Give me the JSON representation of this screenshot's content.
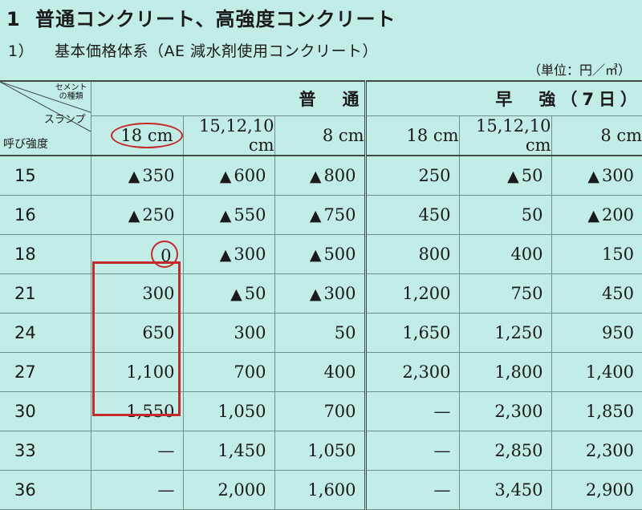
{
  "heading": {
    "num": "1",
    "text": "普通コンクリート、高強度コンクリート"
  },
  "subheading": {
    "num": "1）",
    "text": "基本価格体系（AE 減水剤使用コンクリート）"
  },
  "unit_label": "（単位：円／㎥）",
  "corner": {
    "cement_label": "セメント\nの種類",
    "slump_label": "スランプ",
    "strength_label": "呼び強度"
  },
  "groups": [
    "普　通",
    "早　強（7日）"
  ],
  "slumps": [
    "18 cm",
    "15,12,10 cm",
    "8 cm",
    "18 cm",
    "15,12,10 cm",
    "8 cm"
  ],
  "triangle_symbol": "▲",
  "rows": [
    {
      "strength": "15",
      "cells": [
        {
          "neg": true,
          "v": "350"
        },
        {
          "neg": true,
          "v": "600"
        },
        {
          "neg": true,
          "v": "800"
        },
        {
          "neg": false,
          "v": "250"
        },
        {
          "neg": true,
          "v": "50"
        },
        {
          "neg": true,
          "v": "300"
        }
      ]
    },
    {
      "strength": "16",
      "cells": [
        {
          "neg": true,
          "v": "250"
        },
        {
          "neg": true,
          "v": "550"
        },
        {
          "neg": true,
          "v": "750"
        },
        {
          "neg": false,
          "v": "450"
        },
        {
          "neg": false,
          "v": "50"
        },
        {
          "neg": true,
          "v": "200"
        }
      ]
    },
    {
      "strength": "18",
      "cells": [
        {
          "neg": false,
          "v": "0"
        },
        {
          "neg": true,
          "v": "300"
        },
        {
          "neg": true,
          "v": "500"
        },
        {
          "neg": false,
          "v": "800"
        },
        {
          "neg": false,
          "v": "400"
        },
        {
          "neg": false,
          "v": "150"
        }
      ]
    },
    {
      "strength": "21",
      "cells": [
        {
          "neg": false,
          "v": "300"
        },
        {
          "neg": true,
          "v": "50"
        },
        {
          "neg": true,
          "v": "300"
        },
        {
          "neg": false,
          "v": "1,200"
        },
        {
          "neg": false,
          "v": "750"
        },
        {
          "neg": false,
          "v": "450"
        }
      ]
    },
    {
      "strength": "24",
      "cells": [
        {
          "neg": false,
          "v": "650"
        },
        {
          "neg": false,
          "v": "300"
        },
        {
          "neg": false,
          "v": "50"
        },
        {
          "neg": false,
          "v": "1,650"
        },
        {
          "neg": false,
          "v": "1,250"
        },
        {
          "neg": false,
          "v": "950"
        }
      ]
    },
    {
      "strength": "27",
      "cells": [
        {
          "neg": false,
          "v": "1,100"
        },
        {
          "neg": false,
          "v": "700"
        },
        {
          "neg": false,
          "v": "400"
        },
        {
          "neg": false,
          "v": "2,300"
        },
        {
          "neg": false,
          "v": "1,800"
        },
        {
          "neg": false,
          "v": "1,400"
        }
      ]
    },
    {
      "strength": "30",
      "cells": [
        {
          "neg": false,
          "v": "1,550"
        },
        {
          "neg": false,
          "v": "1,050"
        },
        {
          "neg": false,
          "v": "700"
        },
        {
          "neg": false,
          "v": "—"
        },
        {
          "neg": false,
          "v": "2,300"
        },
        {
          "neg": false,
          "v": "1,850"
        }
      ]
    },
    {
      "strength": "33",
      "cells": [
        {
          "neg": false,
          "v": "—"
        },
        {
          "neg": false,
          "v": "1,450"
        },
        {
          "neg": false,
          "v": "1,050"
        },
        {
          "neg": false,
          "v": "—"
        },
        {
          "neg": false,
          "v": "2,850"
        },
        {
          "neg": false,
          "v": "2,300"
        }
      ]
    },
    {
      "strength": "36",
      "cells": [
        {
          "neg": false,
          "v": "—"
        },
        {
          "neg": false,
          "v": "2,000"
        },
        {
          "neg": false,
          "v": "1,600"
        },
        {
          "neg": false,
          "v": "—"
        },
        {
          "neg": false,
          "v": "3,450"
        },
        {
          "neg": false,
          "v": "2,900"
        }
      ]
    }
  ],
  "highlight_colors": {
    "circle": "#c42a2a",
    "box": "#c42a2a"
  },
  "background_color": "#c2ece6"
}
